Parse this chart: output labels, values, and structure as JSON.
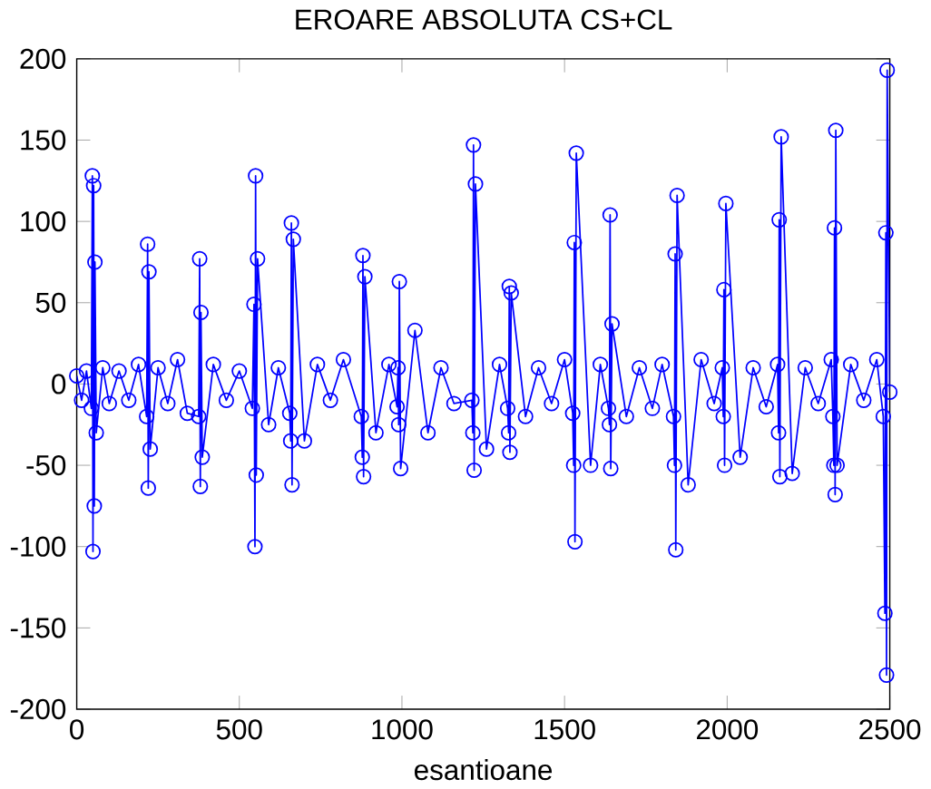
{
  "chart_data": {
    "type": "line",
    "title": "EROARE ABSOLUTA CS+CL",
    "xlabel": "esantioane",
    "xlim": [
      0,
      2500
    ],
    "ylim": [
      -200,
      200
    ],
    "xticks": [
      0,
      500,
      1000,
      1500,
      2000,
      2500
    ],
    "yticks": [
      -200,
      -150,
      -100,
      -50,
      0,
      50,
      100,
      150,
      200
    ],
    "marker": "circle",
    "line_style": "solid",
    "grid": false,
    "series": [
      {
        "color": "#0000ff",
        "x": [
          0,
          15,
          30,
          45,
          48,
          50,
          52,
          54,
          56,
          60,
          80,
          100,
          130,
          160,
          190,
          215,
          218,
          220,
          222,
          226,
          250,
          280,
          310,
          340,
          375,
          378,
          380,
          382,
          386,
          420,
          460,
          500,
          540,
          545,
          548,
          550,
          552,
          556,
          590,
          620,
          655,
          658,
          660,
          662,
          666,
          700,
          740,
          780,
          820,
          875,
          878,
          880,
          882,
          886,
          920,
          960,
          985,
          988,
          990,
          992,
          996,
          1040,
          1080,
          1120,
          1160,
          1215,
          1218,
          1220,
          1222,
          1226,
          1260,
          1300,
          1325,
          1328,
          1330,
          1332,
          1336,
          1380,
          1420,
          1460,
          1500,
          1525,
          1528,
          1530,
          1532,
          1536,
          1580,
          1610,
          1635,
          1638,
          1640,
          1642,
          1646,
          1690,
          1730,
          1770,
          1800,
          1835,
          1838,
          1840,
          1842,
          1846,
          1880,
          1920,
          1960,
          1985,
          1988,
          1990,
          1992,
          1996,
          2040,
          2080,
          2120,
          2155,
          2158,
          2160,
          2162,
          2166,
          2200,
          2240,
          2280,
          2320,
          2325,
          2328,
          2330,
          2332,
          2334,
          2338,
          2380,
          2420,
          2460,
          2480,
          2485,
          2488,
          2490,
          2492,
          2500
        ],
        "values": [
          5,
          -10,
          8,
          -15,
          128,
          -103,
          122,
          -75,
          75,
          -30,
          10,
          -12,
          8,
          -10,
          12,
          -20,
          86,
          -64,
          69,
          -40,
          10,
          -12,
          15,
          -18,
          -20,
          77,
          -63,
          44,
          -45,
          12,
          -10,
          8,
          -15,
          49,
          -100,
          128,
          -56,
          77,
          -25,
          10,
          -18,
          -35,
          99,
          -62,
          89,
          -35,
          12,
          -10,
          15,
          -20,
          -45,
          79,
          -57,
          66,
          -30,
          12,
          -14,
          10,
          -25,
          63,
          -52,
          33,
          -30,
          10,
          -12,
          -10,
          -30,
          147,
          -53,
          123,
          -40,
          12,
          -15,
          -30,
          60,
          -42,
          56,
          -20,
          10,
          -12,
          15,
          -18,
          -50,
          87,
          -97,
          142,
          -50,
          12,
          -15,
          -25,
          104,
          -52,
          37,
          -20,
          10,
          -15,
          12,
          -20,
          -50,
          80,
          -102,
          116,
          -62,
          15,
          -12,
          10,
          -20,
          58,
          -50,
          111,
          -45,
          10,
          -14,
          12,
          -30,
          101,
          -57,
          152,
          -55,
          10,
          -12,
          15,
          -20,
          -50,
          96,
          -68,
          156,
          -50,
          12,
          -10,
          15,
          -20,
          -141,
          93,
          -179,
          193,
          -5
        ]
      }
    ]
  }
}
